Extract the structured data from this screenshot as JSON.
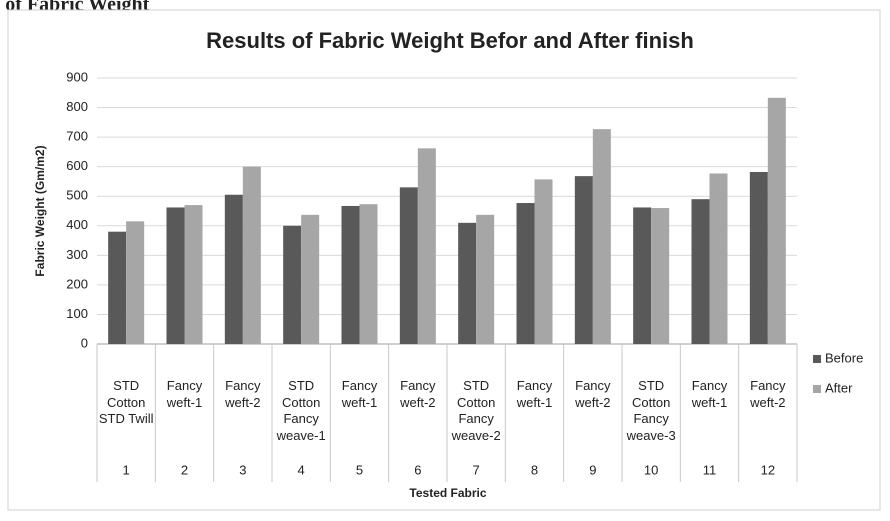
{
  "header": {
    "title": "Results of Fabric Weight"
  },
  "chart_data": {
    "type": "bar",
    "title": "Results of Fabric Weight Befor and After finish",
    "xlabel": "Tested Fabric",
    "ylabel": "Fabric Weight (Gm/m2)",
    "categories": [
      "STD Cotton",
      "Fancy weft-1",
      "Fancy weft-2",
      "STD Cotton",
      "Fancy weft-1",
      "Fancy weft-2",
      "STD Cotton",
      "Fancy weft-1",
      "Fancy weft-2",
      "STD Cotton",
      "Fancy weft-1",
      "Fancy weft-2"
    ],
    "group_labels": [
      "STD Twill",
      null,
      null,
      "Fancy weave-1",
      null,
      null,
      "Fancy weave-2",
      null,
      null,
      "Fancy weave-3",
      null,
      null
    ],
    "category_numbers": [
      1,
      2,
      3,
      4,
      5,
      6,
      7,
      8,
      9,
      10,
      11,
      12
    ],
    "series": [
      {
        "name": "Before",
        "color": "#595959",
        "values": [
          380,
          462,
          505,
          400,
          467,
          530,
          410,
          477,
          568,
          462,
          490,
          582
        ]
      },
      {
        "name": "After",
        "color": "#a6a6a6",
        "values": [
          415,
          470,
          600,
          437,
          473,
          662,
          437,
          557,
          727,
          460,
          577,
          833
        ]
      }
    ],
    "ylim": [
      0,
      900
    ],
    "yticks": [
      0,
      100,
      200,
      300,
      400,
      500,
      600,
      700,
      800,
      900
    ],
    "grid": true,
    "legend": "right"
  }
}
